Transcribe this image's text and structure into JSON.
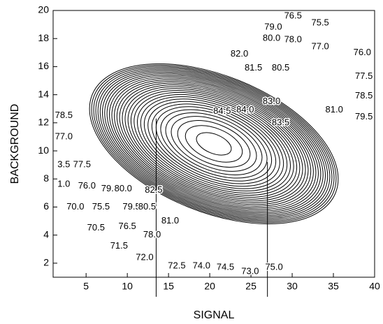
{
  "chart_data": {
    "type": "contour",
    "x_label": "SIGNAL",
    "y_label": "BACKGROUND",
    "xlim": [
      1,
      40
    ],
    "ylim": [
      1,
      20
    ],
    "xticks": [
      5,
      10,
      15,
      20,
      25,
      30,
      35,
      40
    ],
    "yticks": [
      2,
      4,
      6,
      8,
      10,
      12,
      14,
      16,
      18,
      20
    ],
    "levels": [
      70.0,
      70.5,
      71.0,
      71.5,
      72.0,
      72.5,
      73.0,
      73.5,
      74.0,
      74.5,
      75.0,
      75.5,
      76.0,
      76.5,
      77.0,
      77.5,
      78.0,
      78.5,
      79.0,
      79.5,
      80.0,
      80.5,
      81.0,
      81.5,
      82.0,
      82.5,
      83.0,
      83.5,
      84.0,
      84.5,
      85.0
    ],
    "color": "#000000",
    "markers": [
      {
        "x": 13.5,
        "y": 12.3
      },
      {
        "x": 27,
        "y": 9.2
      }
    ],
    "contour_labels": [
      {
        "label": "76.5",
        "x": 30.1,
        "y": 19.6
      },
      {
        "label": "75.5",
        "x": 33.4,
        "y": 19.1
      },
      {
        "label": "79.0",
        "x": 27.7,
        "y": 18.8
      },
      {
        "label": "80.0",
        "x": 27.5,
        "y": 18.0
      },
      {
        "label": "78.0",
        "x": 30.1,
        "y": 17.9
      },
      {
        "label": "77.0",
        "x": 33.4,
        "y": 17.4
      },
      {
        "label": "76.0",
        "x": 38.5,
        "y": 17.0
      },
      {
        "label": "82.0",
        "x": 23.6,
        "y": 16.9
      },
      {
        "label": "81.5",
        "x": 25.3,
        "y": 15.9
      },
      {
        "label": "80.5",
        "x": 28.6,
        "y": 15.9
      },
      {
        "label": "77.5",
        "x": 38.7,
        "y": 15.3
      },
      {
        "label": "78.5",
        "x": 38.7,
        "y": 13.9
      },
      {
        "label": "83.0",
        "x": 27.5,
        "y": 13.5
      },
      {
        "label": "81.0",
        "x": 35.1,
        "y": 12.9
      },
      {
        "label": "79.5",
        "x": 38.7,
        "y": 12.4
      },
      {
        "label": "84.5",
        "x": 21.5,
        "y": 12.8
      },
      {
        "label": "84.0",
        "x": 24.3,
        "y": 12.9
      },
      {
        "label": "83.5",
        "x": 28.6,
        "y": 12.0
      },
      {
        "label": "78.5",
        "x": 2.3,
        "y": 12.5
      },
      {
        "label": "77.0",
        "x": 2.3,
        "y": 11.0
      },
      {
        "label": "3.5",
        "x": 2.3,
        "y": 9.0
      },
      {
        "label": "77.5",
        "x": 4.5,
        "y": 9.0
      },
      {
        "label": "1.0",
        "x": 2.3,
        "y": 7.6
      },
      {
        "label": "76.0",
        "x": 5.1,
        "y": 7.5
      },
      {
        "label": "79.0",
        "x": 7.9,
        "y": 7.3
      },
      {
        "label": "80.0",
        "x": 9.5,
        "y": 7.3
      },
      {
        "label": "82.5",
        "x": 13.2,
        "y": 7.2
      },
      {
        "label": "70.0",
        "x": 3.7,
        "y": 6.0
      },
      {
        "label": "75.5",
        "x": 6.8,
        "y": 6.0
      },
      {
        "label": "79.5",
        "x": 10.5,
        "y": 6.0
      },
      {
        "label": "80.5",
        "x": 12.4,
        "y": 6.0
      },
      {
        "label": "81.0",
        "x": 15.2,
        "y": 5.0
      },
      {
        "label": "70.5",
        "x": 6.2,
        "y": 4.5
      },
      {
        "label": "76.5",
        "x": 10.0,
        "y": 4.6
      },
      {
        "label": "78.0",
        "x": 13.0,
        "y": 4.0
      },
      {
        "label": "71.5",
        "x": 9.0,
        "y": 3.2
      },
      {
        "label": "72.0",
        "x": 12.1,
        "y": 2.4
      },
      {
        "label": "72.5",
        "x": 16.0,
        "y": 1.8
      },
      {
        "label": "74.0",
        "x": 19.0,
        "y": 1.8
      },
      {
        "label": "74.5",
        "x": 21.9,
        "y": 1.7
      },
      {
        "label": "73.0",
        "x": 24.9,
        "y": 1.4
      },
      {
        "label": "75.0",
        "x": 27.8,
        "y": 1.7
      }
    ]
  }
}
